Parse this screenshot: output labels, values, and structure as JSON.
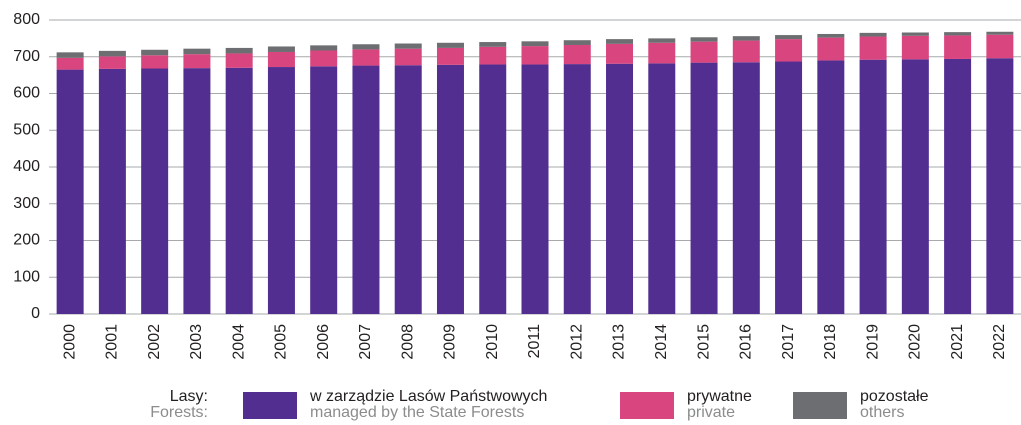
{
  "chart_data": {
    "type": "stacked_bar",
    "categories": [
      "2000",
      "2001",
      "2002",
      "2003",
      "2004",
      "2005",
      "2006",
      "2007",
      "2008",
      "2009",
      "2010",
      "2011",
      "2012",
      "2013",
      "2014",
      "2015",
      "2016",
      "2017",
      "2018",
      "2019",
      "2020",
      "2021",
      "2022"
    ],
    "series": [
      {
        "name": "w zarządzie Lasów Państwowych",
        "name_en": "managed by the State Forests",
        "color": "#522e91",
        "values": [
          665,
          667,
          668,
          669,
          670,
          672,
          674,
          676,
          677,
          678,
          679,
          679,
          680,
          681,
          682,
          684,
          685,
          687,
          690,
          692,
          693,
          694,
          696
        ]
      },
      {
        "name": "prywatne",
        "name_en": "private",
        "color": "#d9467f",
        "values": [
          32,
          34,
          36,
          38,
          39,
          41,
          43,
          44,
          45,
          46,
          48,
          50,
          52,
          54,
          56,
          57,
          59,
          61,
          62,
          63,
          64,
          64,
          64
        ]
      },
      {
        "name": "pozostałe",
        "name_en": "others",
        "color": "#6d6e71",
        "values": [
          15,
          15,
          15,
          15,
          15,
          15,
          14,
          14,
          14,
          14,
          13,
          13,
          13,
          13,
          12,
          12,
          12,
          11,
          10,
          10,
          9,
          9,
          8
        ]
      }
    ],
    "legend_title": "Lasy:",
    "legend_title_en": "Forests:",
    "ylim": [
      0,
      800
    ],
    "yticks": [
      0,
      100,
      200,
      300,
      400,
      500,
      600,
      700,
      800
    ],
    "grid": true
  }
}
